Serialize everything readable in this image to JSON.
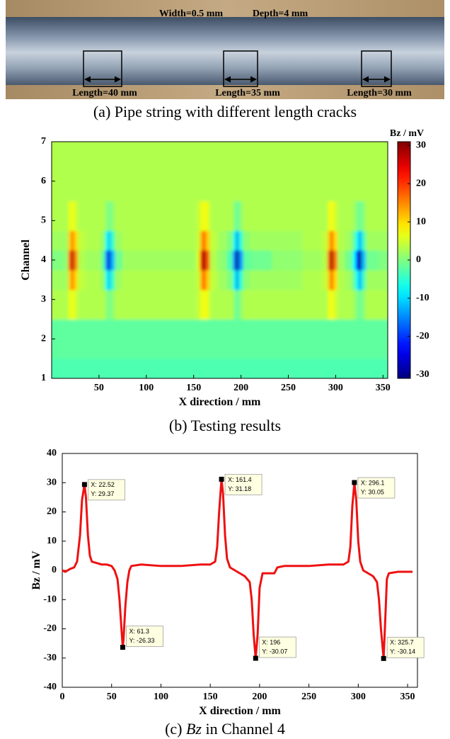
{
  "photo": {
    "labels": [
      "Width=0.5 mm",
      "Depth=4 mm",
      "Length=40 mm",
      "Length=35 mm",
      "Length=30 mm"
    ],
    "caption": "(a) Pipe string with different length cracks"
  },
  "chart_data": [
    {
      "type": "heatmap",
      "caption": "(b) Testing results",
      "x_label": "X direction / mm",
      "y_label": "Channel",
      "colorbar_label": "Bz / mV",
      "colormap": "jet",
      "x": [
        0,
        10,
        15,
        20,
        22,
        25,
        30,
        40,
        50,
        55,
        58,
        61,
        64,
        70,
        80,
        100,
        130,
        150,
        155,
        158,
        161,
        164,
        170,
        180,
        190,
        193,
        196,
        199,
        205,
        215,
        250,
        280,
        290,
        293,
        296,
        299,
        305,
        315,
        320,
        323,
        326,
        329,
        335,
        355
      ],
      "y": [
        1,
        2,
        3,
        3.5,
        4,
        4.5,
        5,
        6,
        7
      ],
      "z": [
        [
          -3,
          -3,
          -3,
          -3,
          -3,
          -3,
          -3,
          -3,
          -3,
          -3,
          -3,
          -3,
          -3,
          -3,
          -3,
          -3,
          -3,
          -3,
          -3,
          -3,
          -3,
          -3,
          -3,
          -3,
          -3,
          -3,
          -3,
          -3,
          -3,
          -3,
          -3,
          -3,
          -3,
          -3,
          -3,
          -3,
          -3,
          -3,
          -3,
          -3,
          -3,
          -3,
          -3,
          -3
        ],
        [
          -2,
          -2,
          -2,
          -2,
          -2,
          -2,
          -2,
          -2,
          -2,
          -2,
          -2,
          -2,
          -2,
          -2,
          -2,
          -2,
          -2,
          -2,
          -2,
          -2,
          -2,
          -2,
          -2,
          -2,
          -2,
          -2,
          -2,
          -2,
          -2,
          -2,
          -2,
          -2,
          -2,
          -2,
          -2,
          -2,
          -2,
          -2,
          -2,
          -2,
          -2,
          -2,
          -2,
          -2
        ],
        [
          3,
          3,
          3,
          6,
          7,
          5,
          3,
          3,
          3,
          3,
          1,
          -1,
          1,
          3,
          3,
          3,
          3,
          3,
          4,
          6,
          8,
          6,
          3,
          3,
          3,
          1,
          -2,
          1,
          3,
          3,
          3,
          3,
          3,
          6,
          8,
          5,
          3,
          3,
          2,
          0,
          -2,
          1,
          3,
          3
        ],
        [
          2,
          2,
          2,
          11,
          16,
          10,
          4,
          3,
          3,
          1,
          -6,
          -11,
          -4,
          2,
          3,
          3,
          3,
          3,
          4,
          12,
          18,
          11,
          4,
          2,
          0,
          -6,
          -13,
          -5,
          1,
          2,
          2,
          3,
          4,
          11,
          17,
          10,
          3,
          2,
          -2,
          -8,
          -13,
          -4,
          2,
          2
        ],
        [
          0,
          0,
          1,
          18,
          29,
          15,
          3,
          2,
          2,
          -2,
          -15,
          -26,
          -12,
          -1,
          2,
          2,
          2,
          2,
          5,
          20,
          31,
          18,
          3,
          1,
          -3,
          -15,
          -30,
          -14,
          -2,
          -1,
          1,
          2,
          3,
          18,
          30,
          16,
          2,
          -1,
          -8,
          -20,
          -30,
          -12,
          -1,
          0
        ],
        [
          2,
          2,
          2,
          11,
          16,
          10,
          4,
          3,
          3,
          1,
          -6,
          -11,
          -4,
          2,
          3,
          3,
          3,
          3,
          4,
          12,
          18,
          11,
          4,
          2,
          0,
          -6,
          -13,
          -5,
          1,
          2,
          2,
          3,
          4,
          11,
          17,
          10,
          3,
          2,
          -2,
          -8,
          -13,
          -4,
          2,
          2
        ],
        [
          3,
          3,
          3,
          6,
          7,
          5,
          3,
          3,
          3,
          3,
          1,
          -1,
          1,
          3,
          3,
          3,
          3,
          3,
          4,
          6,
          8,
          6,
          3,
          3,
          3,
          1,
          -2,
          1,
          3,
          3,
          3,
          3,
          3,
          6,
          8,
          5,
          3,
          3,
          2,
          0,
          -2,
          1,
          3,
          3
        ],
        [
          3,
          3,
          3,
          3,
          3,
          3,
          3,
          3,
          3,
          3,
          3,
          3,
          3,
          3,
          3,
          3,
          3,
          3,
          3,
          3,
          3,
          3,
          3,
          3,
          3,
          3,
          3,
          3,
          3,
          3,
          3,
          3,
          3,
          3,
          3,
          3,
          3,
          3,
          3,
          3,
          3,
          3,
          3,
          3
        ],
        [
          3,
          3,
          3,
          3,
          3,
          3,
          3,
          3,
          3,
          3,
          3,
          3,
          3,
          3,
          3,
          3,
          3,
          3,
          3,
          3,
          3,
          3,
          3,
          3,
          3,
          3,
          3,
          3,
          3,
          3,
          3,
          3,
          3,
          3,
          3,
          3,
          3,
          3,
          3,
          3,
          3,
          3,
          3,
          3
        ]
      ],
      "xlim": [
        0,
        355
      ],
      "ylim": [
        1,
        7
      ],
      "xticks": [
        50,
        100,
        150,
        200,
        250,
        300,
        350
      ],
      "yticks": [
        1,
        2,
        3,
        4,
        5,
        6,
        7
      ],
      "clim": [
        -31,
        31
      ],
      "cticks": [
        -30,
        -20,
        -10,
        0,
        10,
        20,
        30
      ]
    },
    {
      "type": "line",
      "caption_parts": [
        "(c) ",
        "Bz",
        " in Channel 4"
      ],
      "x_label": "X direction / mm",
      "y_label": "Bz / mV",
      "color": "#ee1111",
      "x": [
        0,
        3,
        8,
        12,
        15,
        18,
        20,
        22.52,
        24,
        26,
        28,
        30,
        35,
        40,
        45,
        50,
        53,
        56,
        58,
        60,
        61.3,
        62,
        64,
        66,
        68,
        70,
        80,
        100,
        120,
        140,
        150,
        155,
        157,
        159,
        161.4,
        163,
        165,
        167,
        170,
        175,
        180,
        185,
        190,
        192,
        194,
        196,
        198,
        200,
        203,
        210,
        215,
        218,
        225,
        250,
        270,
        285,
        290,
        292,
        294,
        296.1,
        298,
        300,
        302,
        305,
        310,
        315,
        319,
        321,
        323,
        325.7,
        327,
        329,
        331,
        340,
        355
      ],
      "values": [
        0,
        -0.5,
        0.5,
        1,
        3,
        12,
        24,
        29.37,
        25,
        12,
        5,
        3,
        2.5,
        2,
        2,
        1.5,
        0,
        -3,
        -10,
        -20,
        -26.33,
        -24,
        -12,
        -4,
        0,
        1.5,
        2,
        1.5,
        1.5,
        2,
        2,
        3,
        8,
        20,
        31.18,
        26,
        12,
        4,
        1,
        0,
        -1,
        -2,
        -4,
        -10,
        -22,
        -30.07,
        -22,
        -6,
        -1,
        -1,
        -1,
        1,
        1.5,
        1.5,
        2,
        2,
        3,
        8,
        22,
        30.05,
        24,
        10,
        3,
        0,
        -1,
        -2,
        -4,
        -10,
        -20,
        -30.14,
        -20,
        -3,
        -1,
        -0.5,
        -0.5
      ],
      "xlim": [
        0,
        360
      ],
      "ylim": [
        -40,
        40
      ],
      "xticks": [
        0,
        50,
        100,
        150,
        200,
        250,
        300,
        350
      ],
      "yticks": [
        -40,
        -30,
        -20,
        -10,
        0,
        10,
        20,
        30,
        40
      ],
      "annotations": [
        {
          "x": 22.52,
          "y": 29.37,
          "text": [
            "X: 22.52",
            "Y: 29.37"
          ]
        },
        {
          "x": 61.3,
          "y": -26.33,
          "text": [
            "X: 61.3",
            "Y: -26.33"
          ]
        },
        {
          "x": 161.4,
          "y": 31.18,
          "text": [
            "X: 161.4",
            "Y: 31.18"
          ]
        },
        {
          "x": 196,
          "y": -30.07,
          "text": [
            "X: 196",
            "Y: -30.07"
          ]
        },
        {
          "x": 296.1,
          "y": 30.05,
          "text": [
            "X: 296.1",
            "Y: 30.05"
          ]
        },
        {
          "x": 325.7,
          "y": -30.14,
          "text": [
            "X: 325.7",
            "Y: -30.14"
          ]
        }
      ]
    }
  ]
}
